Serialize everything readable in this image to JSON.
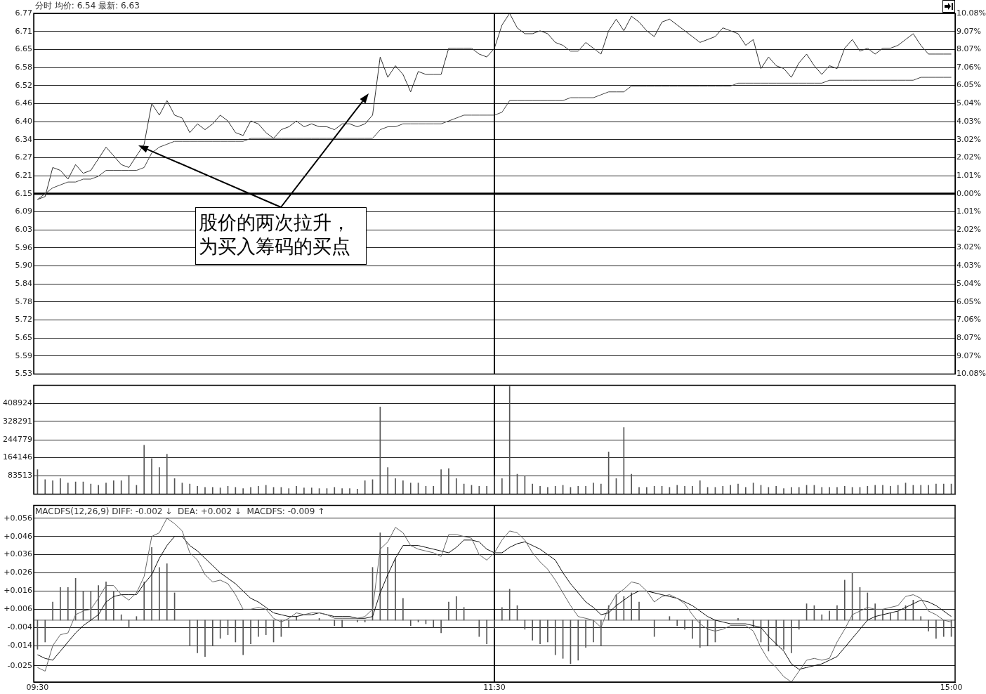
{
  "chart_data": [
    {
      "type": "line",
      "title": "分时 均价: 6.54 最新: 6.63",
      "legend": false,
      "grid": "y",
      "tick_labels": "y",
      "categories": [
        "09:30",
        null,
        null,
        null,
        null,
        null,
        null,
        null,
        null,
        null,
        null,
        null,
        null,
        null,
        null,
        null,
        null,
        null,
        null,
        null,
        null,
        null,
        null,
        null,
        null,
        null,
        null,
        null,
        null,
        null,
        null,
        null,
        null,
        null,
        null,
        null,
        null,
        null,
        null,
        null,
        null,
        null,
        null,
        null,
        null,
        null,
        null,
        null,
        null,
        null,
        null,
        null,
        null,
        null,
        null,
        null,
        null,
        null,
        null,
        null,
        "11:30",
        null,
        null,
        null,
        null,
        null,
        null,
        null,
        null,
        null,
        null,
        null,
        null,
        null,
        null,
        null,
        null,
        null,
        null,
        null,
        null,
        null,
        null,
        null,
        null,
        null,
        null,
        null,
        null,
        null,
        null,
        null,
        null,
        null,
        null,
        null,
        null,
        null,
        null,
        null,
        null,
        null,
        null,
        null,
        null,
        null,
        null,
        null,
        null,
        null,
        null,
        null,
        null,
        null,
        null,
        null,
        null,
        null,
        null,
        null,
        "15:00"
      ],
      "ylim": [
        5.53,
        6.77
      ],
      "yticks": [
        5.53,
        {
          "value": 5.592,
          "label": "5.59"
        },
        {
          "value": 5.654,
          "label": "5.65"
        },
        {
          "value": 5.716,
          "label": "5.72"
        },
        {
          "value": 5.778,
          "label": "5.78"
        },
        5.84,
        {
          "value": 5.902,
          "label": "5.90"
        },
        {
          "value": 5.964,
          "label": "5.96"
        },
        {
          "value": 6.026,
          "label": "6.03"
        },
        {
          "value": 6.088,
          "label": "6.09"
        },
        6.15,
        {
          "value": 6.212,
          "label": "6.21"
        },
        {
          "value": 6.274,
          "label": "6.27"
        },
        {
          "value": 6.336,
          "label": "6.34"
        },
        {
          "value": 6.398,
          "label": "6.40"
        },
        6.46,
        {
          "value": 6.522,
          "label": "6.52"
        },
        {
          "value": 6.584,
          "label": "6.58"
        },
        {
          "value": 6.646,
          "label": "6.65"
        },
        {
          "value": 6.708,
          "label": "6.71"
        },
        6.77
      ],
      "y2lim": [
        -10.08,
        10.08
      ],
      "y2ticks": [
        {
          "value": -10.08,
          "label": "10.08%"
        },
        {
          "value": -9.07,
          "label": "9.07%"
        },
        {
          "value": -8.07,
          "label": "8.07%"
        },
        {
          "value": -7.06,
          "label": "7.06%"
        },
        {
          "value": -6.05,
          "label": "6.05%"
        },
        {
          "value": -5.04,
          "label": "5.04%"
        },
        {
          "value": -4.03,
          "label": "4.03%"
        },
        {
          "value": -3.02,
          "label": "3.02%"
        },
        {
          "value": -2.02,
          "label": "2.02%"
        },
        {
          "value": -1.01,
          "label": "1.01%"
        },
        {
          "value": 0,
          "label": "0.00%"
        },
        {
          "value": 1.01,
          "label": "1.01%"
        },
        {
          "value": 2.02,
          "label": "2.02%"
        },
        {
          "value": 3.02,
          "label": "3.02%"
        },
        {
          "value": 4.03,
          "label": "4.03%"
        },
        {
          "value": 5.04,
          "label": "5.04%"
        },
        {
          "value": 6.05,
          "label": "6.05%"
        },
        {
          "value": 7.06,
          "label": "7.06%"
        },
        {
          "value": 8.07,
          "label": "8.07%"
        },
        {
          "value": 9.07,
          "label": "9.07%"
        },
        {
          "value": 10.08,
          "label": "10.08%"
        }
      ],
      "ref_lines": [
        {
          "axis": "y",
          "value": 6.15,
          "color": "#000000"
        },
        {
          "axis": "x",
          "value": "11:30",
          "color": "#000000"
        }
      ],
      "annotations": [
        "股价的两次拉升，为买入筹码的买点"
      ],
      "series": [
        {
          "color": "#333333",
          "values": [
            6.13,
            6.14,
            6.24,
            6.23,
            6.2,
            6.25,
            6.22,
            6.23,
            6.27,
            6.31,
            6.28,
            6.25,
            6.24,
            6.28,
            6.32,
            6.46,
            6.42,
            6.47,
            6.42,
            6.41,
            6.36,
            6.39,
            6.37,
            6.39,
            6.42,
            6.4,
            6.36,
            6.35,
            6.4,
            6.39,
            6.36,
            6.34,
            6.37,
            6.38,
            6.4,
            6.38,
            6.39,
            6.38,
            6.38,
            6.37,
            6.39,
            6.39,
            6.38,
            6.39,
            6.42,
            6.62,
            6.55,
            6.59,
            6.56,
            6.5,
            6.57,
            6.56,
            6.56,
            6.56,
            6.65,
            6.65,
            6.65,
            6.65,
            6.63,
            6.62,
            6.65,
            6.73,
            6.77,
            6.72,
            6.7,
            6.7,
            6.71,
            6.7,
            6.67,
            6.66,
            6.64,
            6.64,
            6.67,
            6.65,
            6.63,
            6.71,
            6.75,
            6.71,
            6.76,
            6.74,
            6.71,
            6.69,
            6.74,
            6.75,
            6.73,
            6.71,
            6.69,
            6.67,
            6.68,
            6.69,
            6.72,
            6.71,
            6.7,
            6.66,
            6.68,
            6.58,
            6.62,
            6.59,
            6.58,
            6.55,
            6.6,
            6.63,
            6.59,
            6.56,
            6.59,
            6.58,
            6.65,
            6.68,
            6.64,
            6.65,
            6.63,
            6.65,
            6.65,
            6.66,
            6.68,
            6.7,
            6.66,
            6.63,
            6.63,
            6.63,
            6.63
          ]
        },
        {
          "color": "#444444",
          "values": [
            6.13,
            6.15,
            6.17,
            6.18,
            6.19,
            6.19,
            6.2,
            6.2,
            6.21,
            6.23,
            6.23,
            6.23,
            6.23,
            6.23,
            6.24,
            6.29,
            6.31,
            6.32,
            6.33,
            6.33,
            6.33,
            6.33,
            6.33,
            6.33,
            6.33,
            6.33,
            6.33,
            6.33,
            6.34,
            6.34,
            6.34,
            6.34,
            6.34,
            6.34,
            6.34,
            6.34,
            6.34,
            6.34,
            6.34,
            6.34,
            6.34,
            6.34,
            6.34,
            6.34,
            6.34,
            6.37,
            6.38,
            6.38,
            6.39,
            6.39,
            6.39,
            6.39,
            6.39,
            6.39,
            6.4,
            6.41,
            6.42,
            6.42,
            6.42,
            6.42,
            6.42,
            6.43,
            6.47,
            6.47,
            6.47,
            6.47,
            6.47,
            6.47,
            6.47,
            6.47,
            6.48,
            6.48,
            6.48,
            6.48,
            6.49,
            6.5,
            6.5,
            6.5,
            6.52,
            6.52,
            6.52,
            6.52,
            6.52,
            6.52,
            6.52,
            6.52,
            6.52,
            6.52,
            6.52,
            6.52,
            6.52,
            6.52,
            6.53,
            6.53,
            6.53,
            6.53,
            6.53,
            6.53,
            6.53,
            6.53,
            6.53,
            6.53,
            6.53,
            6.53,
            6.54,
            6.54,
            6.54,
            6.54,
            6.54,
            6.54,
            6.54,
            6.54,
            6.54,
            6.54,
            6.54,
            6.54,
            6.55,
            6.55,
            6.55,
            6.55,
            6.55
          ]
        }
      ]
    },
    {
      "type": "bar",
      "legend": false,
      "grid": "y",
      "tick_labels": "y",
      "color": "#555555",
      "categories": [
        "09:30",
        null,
        null,
        null,
        null,
        null,
        null,
        null,
        null,
        null,
        null,
        null,
        null,
        null,
        null,
        null,
        null,
        null,
        null,
        null,
        null,
        null,
        null,
        null,
        null,
        null,
        null,
        null,
        null,
        null,
        null,
        null,
        null,
        null,
        null,
        null,
        null,
        null,
        null,
        null,
        null,
        null,
        null,
        null,
        null,
        null,
        null,
        null,
        null,
        null,
        null,
        null,
        null,
        null,
        null,
        null,
        null,
        null,
        null,
        null,
        "11:30",
        null,
        null,
        null,
        null,
        null,
        null,
        null,
        null,
        null,
        null,
        null,
        null,
        null,
        null,
        null,
        null,
        null,
        null,
        null,
        null,
        null,
        null,
        null,
        null,
        null,
        null,
        null,
        null,
        null,
        null,
        null,
        null,
        null,
        null,
        null,
        null,
        null,
        null,
        null,
        null,
        null,
        null,
        null,
        null,
        null,
        null,
        null,
        null,
        null,
        null,
        null,
        null,
        null,
        null,
        null,
        null,
        null,
        null,
        null,
        "15:00"
      ],
      "ylim": [
        0,
        490000
      ],
      "yticks": [
        83513,
        164146,
        244779,
        328291,
        408924
      ],
      "ref_lines": [
        {
          "axis": "x",
          "value": "11:30",
          "color": "#000000"
        }
      ],
      "values": [
        110000,
        65000,
        60000,
        70000,
        50000,
        55000,
        55000,
        45000,
        40000,
        50000,
        60000,
        60000,
        85000,
        40000,
        220000,
        160000,
        120000,
        180000,
        70000,
        50000,
        45000,
        35000,
        30000,
        30000,
        28000,
        35000,
        30000,
        25000,
        30000,
        35000,
        40000,
        30000,
        30000,
        25000,
        35000,
        28000,
        28000,
        25000,
        25000,
        30000,
        25000,
        25000,
        22000,
        60000,
        65000,
        393000,
        120000,
        70000,
        60000,
        50000,
        50000,
        35000,
        35000,
        110000,
        115000,
        70000,
        45000,
        40000,
        35000,
        35000,
        80000,
        70000,
        485000,
        90000,
        80000,
        45000,
        35000,
        30000,
        35000,
        40000,
        30000,
        35000,
        35000,
        50000,
        45000,
        190000,
        70000,
        300000,
        90000,
        30000,
        30000,
        35000,
        35000,
        30000,
        40000,
        35000,
        35000,
        60000,
        30000,
        30000,
        35000,
        40000,
        45000,
        30000,
        50000,
        40000,
        30000,
        35000,
        25000,
        30000,
        30000,
        40000,
        40000,
        30000,
        30000,
        30000,
        35000,
        30000,
        30000,
        35000,
        40000,
        40000,
        35000,
        40000,
        50000,
        40000,
        40000,
        40000,
        45000,
        45000,
        45000
      ]
    },
    {
      "type": "line",
      "title": "MACDFS(12,26,9) DIFF: -0.002 ↓  DEA: +0.002 ↓  MACDFS: -0.009 ↑",
      "legend": false,
      "grid": "y",
      "categories": [
        "09:30",
        null,
        null,
        null,
        null,
        null,
        null,
        null,
        null,
        null,
        null,
        null,
        null,
        null,
        null,
        null,
        null,
        null,
        null,
        null,
        null,
        null,
        null,
        null,
        null,
        null,
        null,
        null,
        null,
        null,
        null,
        null,
        null,
        null,
        null,
        null,
        null,
        null,
        null,
        null,
        null,
        null,
        null,
        null,
        null,
        null,
        null,
        null,
        null,
        null,
        null,
        null,
        null,
        null,
        null,
        null,
        null,
        null,
        null,
        null,
        "11:30",
        null,
        null,
        null,
        null,
        null,
        null,
        null,
        null,
        null,
        null,
        null,
        null,
        null,
        null,
        null,
        null,
        null,
        null,
        null,
        null,
        null,
        null,
        null,
        null,
        null,
        null,
        null,
        null,
        null,
        null,
        null,
        null,
        null,
        null,
        null,
        null,
        null,
        null,
        null,
        null,
        null,
        null,
        null,
        null,
        null,
        null,
        null,
        null,
        null,
        null,
        null,
        null,
        null,
        null,
        null,
        null,
        null,
        null,
        null,
        "15:00"
      ],
      "ylim": [
        -0.034,
        0.063
      ],
      "yticks": [
        {
          "value": -0.025,
          "label": "-0.025"
        },
        {
          "value": -0.014,
          "label": "-0.014"
        },
        {
          "value": -0.004,
          "label": "-0.004"
        },
        {
          "value": 0.006,
          "label": "+0.006"
        },
        {
          "value": 0.016,
          "label": "+0.016"
        },
        {
          "value": 0.026,
          "label": "+0.026"
        },
        {
          "value": 0.036,
          "label": "+0.036"
        },
        {
          "value": 0.046,
          "label": "+0.046"
        },
        {
          "value": 0.056,
          "label": "+0.056"
        }
      ],
      "ref_lines": [
        {
          "axis": "x",
          "value": "11:30",
          "color": "#000000"
        },
        {
          "axis": "y",
          "value": 0,
          "color": "#555555"
        }
      ],
      "series": [
        {
          "type": "bar",
          "color": "#555555",
          "values": [
            -0.016,
            -0.012,
            0.01,
            0.018,
            0.018,
            0.023,
            0.016,
            0.016,
            0.019,
            0.021,
            0.016,
            0.003,
            -0.004,
            0.002,
            0.021,
            0.04,
            0.029,
            0.031,
            0.015,
            null,
            -0.014,
            -0.018,
            -0.02,
            -0.014,
            -0.01,
            -0.008,
            -0.012,
            -0.019,
            -0.013,
            -0.009,
            -0.008,
            -0.012,
            -0.009,
            -0.004,
            0.002,
            null,
            null,
            0.001,
            null,
            -0.003,
            -0.004,
            null,
            -0.001,
            -0.001,
            0.029,
            0.048,
            0.04,
            0.034,
            0.012,
            -0.003,
            -0.001,
            -0.002,
            -0.004,
            -0.007,
            0.01,
            0.013,
            0.007,
            null,
            -0.009,
            -0.013,
            -0.005,
            0.007,
            0.017,
            0.008,
            -0.005,
            -0.011,
            -0.013,
            -0.012,
            -0.019,
            -0.021,
            -0.024,
            -0.022,
            -0.015,
            -0.012,
            -0.014,
            0.008,
            0.014,
            0.013,
            0.015,
            0.01,
            null,
            -0.009,
            null,
            0.002,
            -0.003,
            -0.005,
            -0.01,
            -0.015,
            -0.014,
            -0.012,
            null,
            null,
            0.001,
            null,
            -0.004,
            -0.012,
            -0.017,
            -0.014,
            -0.016,
            -0.018,
            -0.005,
            0.009,
            0.008,
            0.003,
            0.005,
            0.008,
            0.022,
            0.026,
            0.018,
            0.015,
            0.009,
            0.006,
            0.004,
            0.005,
            0.008,
            0.011,
            0.002,
            -0.006,
            -0.01,
            -0.009,
            -0.009
          ]
        },
        {
          "color": "#666666",
          "values": [
            -0.026,
            -0.028,
            -0.014,
            -0.008,
            -0.007,
            0.003,
            0.005,
            0.006,
            0.012,
            0.019,
            0.019,
            0.014,
            0.011,
            0.015,
            0.024,
            0.046,
            0.048,
            0.056,
            0.053,
            0.049,
            0.037,
            0.033,
            0.025,
            0.021,
            0.022,
            0.02,
            0.014,
            0.006,
            0.006,
            0.007,
            0.006,
            0.001,
            -0.001,
            0.001,
            0.004,
            0.003,
            0.004,
            0.004,
            0.003,
            0.001,
            0.001,
            0.001,
            0.001,
            0.002,
            0.006,
            0.039,
            0.043,
            0.051,
            0.048,
            0.041,
            0.039,
            0.038,
            0.037,
            0.035,
            0.047,
            0.047,
            0.046,
            0.045,
            0.036,
            0.033,
            0.037,
            0.044,
            0.049,
            0.048,
            0.044,
            0.037,
            0.032,
            0.028,
            0.022,
            0.015,
            0.008,
            0.002,
            0.001,
            0.0,
            -0.004,
            0.007,
            0.014,
            0.017,
            0.021,
            0.02,
            0.016,
            0.01,
            0.013,
            0.014,
            0.012,
            0.009,
            0.003,
            -0.002,
            -0.005,
            -0.006,
            -0.005,
            -0.003,
            -0.003,
            -0.003,
            -0.006,
            -0.015,
            -0.022,
            -0.026,
            -0.031,
            -0.034,
            -0.028,
            -0.022,
            -0.021,
            -0.022,
            -0.021,
            -0.012,
            -0.005,
            0.003,
            0.005,
            0.007,
            0.006,
            0.006,
            0.007,
            0.008,
            0.013,
            0.014,
            0.012,
            0.005,
            0.003,
            0.0,
            -0.001
          ]
        },
        {
          "color": "#111111",
          "values": [
            -0.019,
            -0.021,
            -0.022,
            -0.017,
            -0.012,
            -0.007,
            -0.003,
            0.0,
            0.003,
            0.01,
            0.013,
            0.014,
            0.014,
            0.014,
            0.02,
            0.025,
            0.034,
            0.041,
            0.046,
            0.046,
            0.041,
            0.038,
            0.034,
            0.03,
            0.026,
            0.023,
            0.02,
            0.016,
            0.012,
            0.01,
            0.007,
            0.004,
            0.003,
            0.002,
            0.002,
            0.003,
            0.003,
            0.004,
            0.003,
            0.002,
            0.002,
            0.002,
            0.001,
            0.001,
            0.002,
            0.015,
            0.025,
            0.034,
            0.041,
            0.041,
            0.041,
            0.04,
            0.039,
            0.038,
            0.037,
            0.04,
            0.044,
            0.044,
            0.043,
            0.039,
            0.037,
            0.037,
            0.04,
            0.042,
            0.043,
            0.041,
            0.039,
            0.036,
            0.033,
            0.026,
            0.02,
            0.015,
            0.01,
            0.007,
            0.003,
            0.004,
            0.008,
            0.011,
            0.014,
            0.016,
            0.016,
            0.015,
            0.014,
            0.013,
            0.012,
            0.01,
            0.008,
            0.005,
            0.002,
            0.0,
            -0.001,
            -0.002,
            -0.002,
            -0.002,
            -0.003,
            -0.004,
            -0.009,
            -0.013,
            -0.017,
            -0.024,
            -0.027,
            -0.026,
            -0.025,
            -0.024,
            -0.022,
            -0.02,
            -0.015,
            -0.01,
            -0.005,
            0.0,
            0.002,
            0.003,
            0.004,
            0.005,
            0.007,
            0.009,
            0.011,
            0.01,
            0.008,
            0.005,
            0.002
          ]
        }
      ]
    }
  ]
}
